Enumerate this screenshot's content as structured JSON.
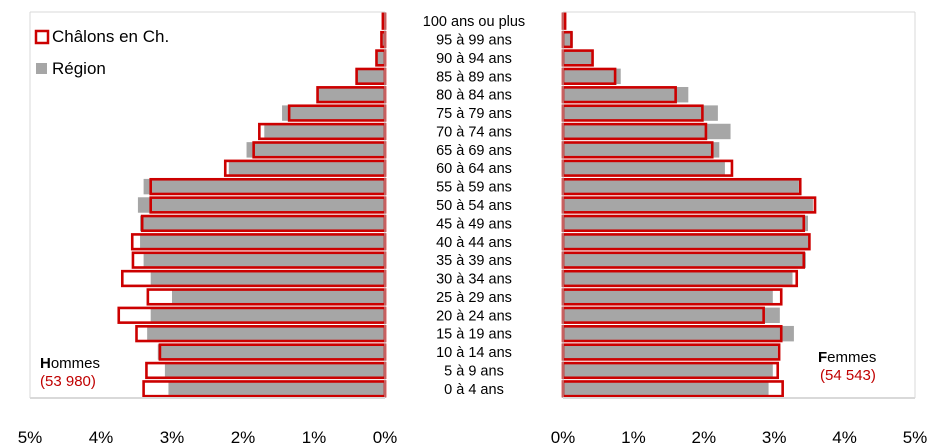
{
  "chart_data": {
    "type": "bar",
    "orientation": "horizontal",
    "layout": "population-pyramid",
    "categories": [
      "0 à 4 ans",
      "5 à 9 ans",
      "10 à 14 ans",
      "15 à 19 ans",
      "20 à 24 ans",
      "25 à 29 ans",
      "30 à 34 ans",
      "35 à 39 ans",
      "40 à 44 ans",
      "45 à 49 ans",
      "50 à 54 ans",
      "55 à 59 ans",
      "60 à 64 ans",
      "65 à 69 ans",
      "70 à 74 ans",
      "75 à 79 ans",
      "80 à 84 ans",
      "85 à 89 ans",
      "90 à 94 ans",
      "95 à 99 ans",
      "100 ans ou plus"
    ],
    "x_ticks_left": [
      "5%",
      "4%",
      "3%",
      "2%",
      "1%",
      "0%"
    ],
    "x_ticks_right": [
      "0%",
      "1%",
      "2%",
      "3%",
      "4%",
      "5%"
    ],
    "xlim": [
      0,
      5
    ],
    "legend_position": "top-left",
    "colors": {
      "city": "#cc0000",
      "region": "#a6a6a6"
    },
    "series": [
      {
        "name": "Châlons en Ch.",
        "style": "outline",
        "hommes": [
          3.4,
          3.36,
          3.17,
          3.5,
          3.75,
          3.34,
          3.7,
          3.55,
          3.56,
          3.42,
          3.3,
          3.3,
          2.25,
          1.85,
          1.77,
          1.35,
          0.95,
          0.4,
          0.12,
          0.05,
          0.03
        ],
        "femmes": [
          3.12,
          3.05,
          3.07,
          3.1,
          2.85,
          3.1,
          3.32,
          3.42,
          3.5,
          3.42,
          3.58,
          3.37,
          2.4,
          2.12,
          2.03,
          1.98,
          1.6,
          0.74,
          0.42,
          0.12,
          0.03
        ]
      },
      {
        "name": "Région",
        "style": "filled",
        "hommes": [
          3.05,
          3.1,
          3.2,
          3.35,
          3.3,
          3.0,
          3.3,
          3.4,
          3.45,
          3.45,
          3.48,
          3.4,
          2.2,
          1.95,
          1.7,
          1.45,
          0.95,
          0.4,
          0.12,
          0.05,
          0.02
        ],
        "femmes": [
          2.92,
          2.98,
          3.05,
          3.28,
          3.08,
          2.98,
          3.26,
          3.45,
          3.5,
          3.48,
          3.55,
          3.35,
          2.3,
          2.22,
          2.38,
          2.2,
          1.78,
          0.82,
          0.43,
          0.14,
          0.03
        ]
      }
    ],
    "hommes_label": {
      "initial": "H",
      "rest": "ommes",
      "count": "(53 980)"
    },
    "femmes_label": {
      "initial": "F",
      "rest": "emmes",
      "count": "(54 543)"
    }
  }
}
